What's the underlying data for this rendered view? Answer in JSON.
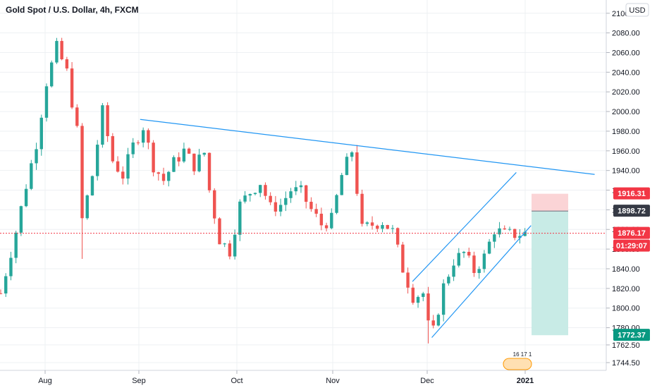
{
  "header": {
    "title": "Gold Spot / U.S. Dollar, 4h, FXCM"
  },
  "currency_button": {
    "label": "USD"
  },
  "colors": {
    "up": "#26a69a",
    "down": "#ef5350",
    "line": "#2196f3",
    "grid": "#eef0f3",
    "price_tag_red": "#f23645",
    "price_tag_teal": "#089981",
    "entry_tag": "#363a45",
    "stop_zone": "#fbd4d6",
    "target_zone": "#c8ebe6"
  },
  "chart_data": {
    "type": "candlestick",
    "title": "Gold Spot / U.S. Dollar, 4h, FXCM",
    "xlabel": "",
    "ylabel": "",
    "x_ticks": [
      "Aug",
      "Sep",
      "Oct",
      "Nov",
      "Dec",
      "2021"
    ],
    "y_ticks": [
      "1744.50",
      "1762.50",
      "1780.00",
      "1800.00",
      "1820.00",
      "1840.00",
      "1860.00",
      "1880.00",
      "1900.00",
      "1920.00",
      "1940.00",
      "1960.00",
      "1980.00",
      "2000.00",
      "2020.00",
      "2040.00",
      "2060.00",
      "2080.00",
      "2100.00"
    ],
    "ylim": [
      1738,
      2108
    ],
    "price_path": [
      [
        0,
        1815
      ],
      [
        3,
        1878
      ],
      [
        5,
        1925
      ],
      [
        7,
        1968
      ],
      [
        9,
        2030
      ],
      [
        11,
        2065
      ],
      [
        13,
        2040
      ],
      [
        15,
        1980
      ],
      [
        16,
        1890
      ],
      [
        18,
        1935
      ],
      [
        20,
        2000
      ],
      [
        22,
        1950
      ],
      [
        24,
        1935
      ],
      [
        26,
        1965
      ],
      [
        28,
        1985
      ],
      [
        30,
        1945
      ],
      [
        32,
        1930
      ],
      [
        34,
        1948
      ],
      [
        36,
        1960
      ],
      [
        38,
        1945
      ],
      [
        40,
        1958
      ],
      [
        41,
        1920
      ],
      [
        43,
        1870
      ],
      [
        45,
        1858
      ],
      [
        47,
        1905
      ],
      [
        49,
        1918
      ],
      [
        51,
        1928
      ],
      [
        53,
        1902
      ],
      [
        55,
        1905
      ],
      [
        57,
        1920
      ],
      [
        59,
        1918
      ],
      [
        61,
        1900
      ],
      [
        63,
        1885
      ],
      [
        65,
        1890
      ],
      [
        67,
        1935
      ],
      [
        69,
        1960
      ],
      [
        71,
        1880
      ],
      [
        73,
        1885
      ],
      [
        75,
        1888
      ],
      [
        77,
        1878
      ],
      [
        79,
        1840
      ],
      [
        81,
        1812
      ],
      [
        83,
        1815
      ],
      [
        84,
        1782
      ],
      [
        85,
        1776
      ],
      [
        87,
        1822
      ],
      [
        89,
        1848
      ],
      [
        91,
        1856
      ],
      [
        93,
        1838
      ],
      [
        95,
        1852
      ],
      [
        97,
        1880
      ],
      [
        99,
        1875
      ],
      [
        101,
        1875
      ],
      [
        103,
        1876
      ]
    ],
    "trendlines": [
      {
        "name": "",
        "x": [
          27.4,
          116.7
        ],
        "y": [
          1992,
          1936
        ]
      },
      {
        "name": "",
        "x": [
          80.9,
          101.3
        ],
        "y": [
          1827,
          1938
        ]
      },
      {
        "name": "",
        "x": [
          84.7,
          104.2
        ],
        "y": [
          1770,
          1884
        ]
      }
    ],
    "position": {
      "type": "short",
      "entry": 1898.72,
      "stop": 1916.31,
      "target": 1772.37,
      "x_range": [
        104.3,
        111.5
      ]
    },
    "price_labels": [
      {
        "value": 1916.31,
        "text": "1916.31",
        "kind": "stop"
      },
      {
        "value": 1898.72,
        "text": "1898.72",
        "kind": "entry"
      },
      {
        "value": 1876.17,
        "text": "1876.17",
        "kind": "last"
      },
      {
        "value": 1860.5,
        "text": "01:29:07",
        "kind": "countdown"
      },
      {
        "value": 1772.37,
        "text": "1772.37",
        "kind": "target"
      }
    ],
    "last_price": 1876.17,
    "grid": true,
    "y_axis_side": "right"
  },
  "watermark": {
    "text": "16 17 1"
  }
}
